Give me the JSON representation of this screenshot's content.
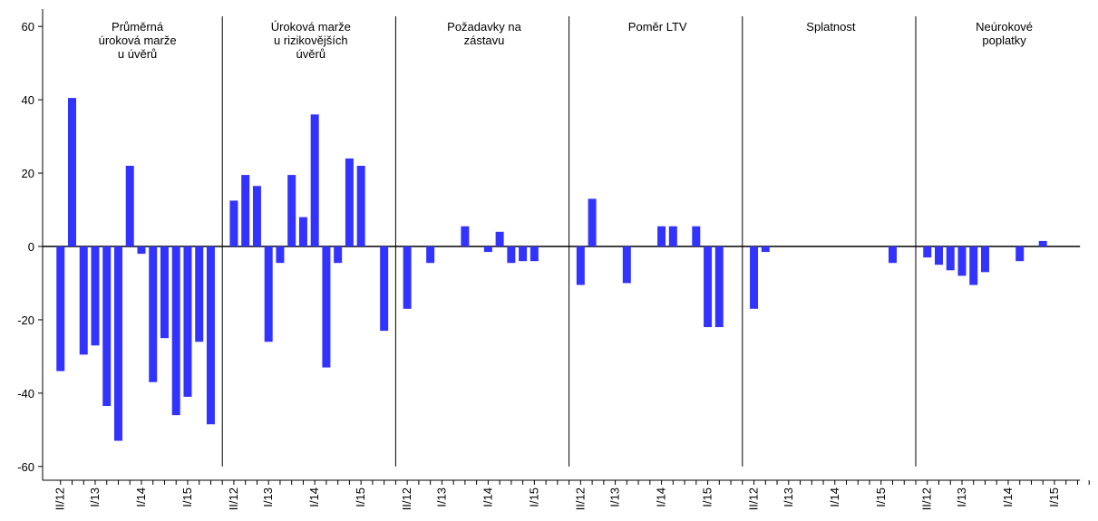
{
  "chart_data": {
    "type": "bar",
    "color": "#3333ff",
    "categories": [
      "II/12",
      null,
      null,
      "I/13",
      null,
      null,
      null,
      "I/14",
      null,
      null,
      null,
      "I/15",
      null,
      null
    ],
    "ylim": [
      -64,
      64
    ],
    "yticks": [
      -60,
      -40,
      -20,
      0,
      20,
      40,
      60
    ],
    "panels": [
      {
        "title": [
          "Průměrná",
          "úroková marže",
          "u úvěrů"
        ],
        "values": [
          -34,
          40.5,
          -29.5,
          -27,
          -43.5,
          -53,
          22,
          -2,
          -37,
          -25,
          -46,
          -41,
          -26,
          -48.5
        ]
      },
      {
        "title": [
          "Úroková marže",
          "u rizikovějších",
          "úvěrů"
        ],
        "values": [
          12.5,
          19.5,
          16.5,
          -26,
          -4.5,
          19.5,
          8,
          36,
          -33,
          -4.5,
          24,
          22,
          0,
          -23
        ]
      },
      {
        "title": [
          "Požadavky na",
          "zástavu"
        ],
        "values": [
          -17,
          0,
          -4.5,
          0,
          0,
          5.5,
          0,
          -1.5,
          4,
          -4.5,
          -4,
          -4,
          0,
          0
        ]
      },
      {
        "title": [
          "Poměr LTV"
        ],
        "values": [
          -10.5,
          13,
          0,
          0,
          -10,
          0,
          0,
          5.5,
          5.5,
          0,
          5.5,
          -22,
          -22,
          0
        ]
      },
      {
        "title": [
          "Splatnost"
        ],
        "values": [
          -17,
          -1.5,
          0,
          0,
          0,
          0,
          0,
          0,
          0,
          0,
          0,
          0,
          -4.5,
          0
        ]
      },
      {
        "title": [
          "Neúrokové",
          "poplatky"
        ],
        "values": [
          -3,
          -5,
          -6.5,
          -8,
          -10.5,
          -7,
          0,
          0,
          -4,
          0,
          1.5,
          0,
          0,
          0
        ]
      }
    ]
  }
}
